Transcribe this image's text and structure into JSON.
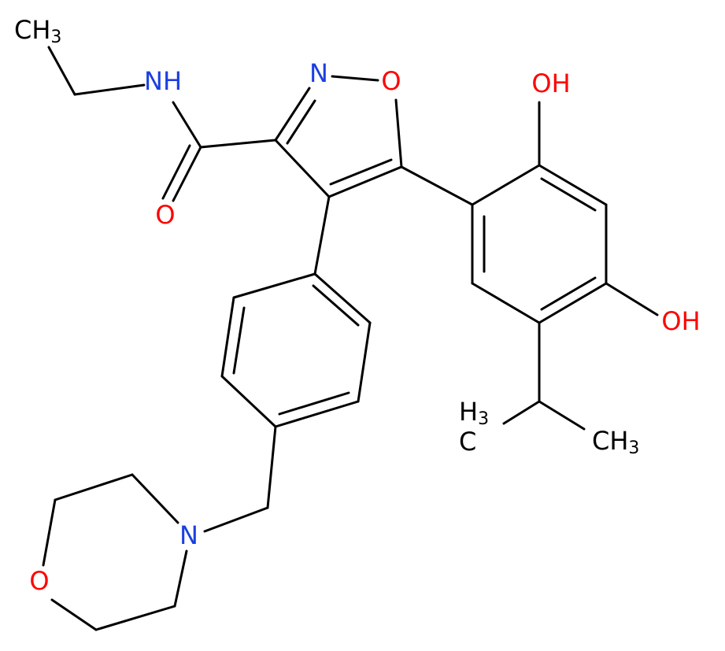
{
  "molecule": {
    "atoms": {
      "ethyl_ch3": {
        "main": "CH",
        "sub": "3"
      },
      "amide_nh": "NH",
      "carbonyl_o": "O",
      "isoxazole_n": "N",
      "isoxazole_o": "O",
      "hydroxyl_top": "OH",
      "hydroxyl_right": "OH",
      "isopropyl_left": {
        "h": "H",
        "sub": "3",
        "c": "C"
      },
      "isopropyl_right": {
        "main": "CH",
        "sub": "3"
      },
      "morpholine_n": "N",
      "morpholine_o": "O"
    }
  }
}
